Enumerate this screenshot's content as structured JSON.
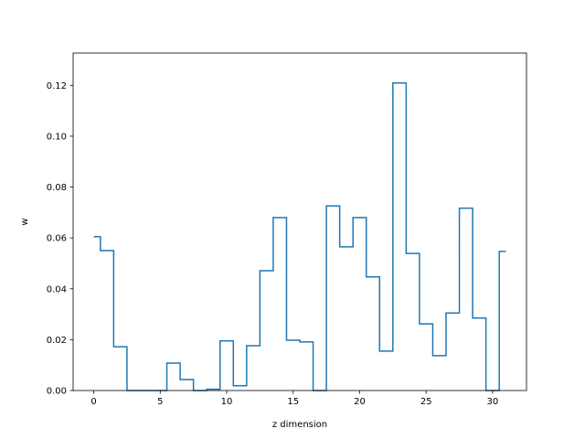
{
  "chart_data": {
    "type": "line",
    "step": "mid",
    "title": "",
    "xlabel": "z dimension",
    "ylabel": "w",
    "xlim": [
      -1.55,
      32.55
    ],
    "ylim": [
      0.0,
      0.1327
    ],
    "xticks": [
      0,
      5,
      10,
      15,
      20,
      25,
      30
    ],
    "yticks": [
      0.0,
      0.02,
      0.04,
      0.06,
      0.08,
      0.1,
      0.12
    ],
    "ytick_labels": [
      "0.00",
      "0.02",
      "0.04",
      "0.06",
      "0.08",
      "0.10",
      "0.12"
    ],
    "grid": false,
    "line_color": "#1f77b4",
    "series": [
      {
        "x": [
          0,
          1,
          2,
          3,
          4,
          5,
          6,
          7,
          8,
          9,
          10,
          11,
          12,
          13,
          14,
          15,
          16,
          17,
          18,
          19,
          20,
          21,
          22,
          23,
          24,
          25,
          26,
          27,
          28,
          29,
          30,
          31
        ],
        "values": [
          0.0605,
          0.055,
          0.0172,
          0.0,
          0.0,
          0.0,
          0.0108,
          0.0043,
          0.0,
          0.0005,
          0.0195,
          0.0019,
          0.0176,
          0.0471,
          0.068,
          0.0198,
          0.0191,
          0.0,
          0.0726,
          0.0565,
          0.068,
          0.0447,
          0.0155,
          0.1209,
          0.0539,
          0.0262,
          0.0137,
          0.0305,
          0.0717,
          0.0285,
          0.0,
          0.0547
        ]
      }
    ]
  }
}
